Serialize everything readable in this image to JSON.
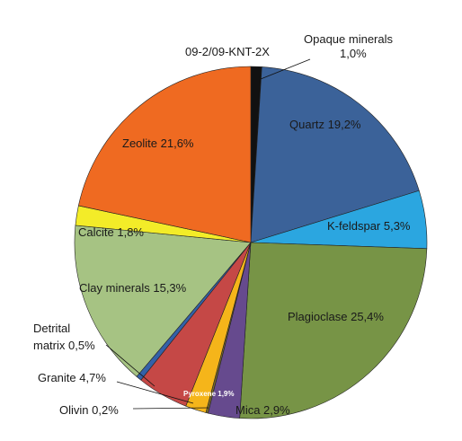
{
  "chart_data": {
    "type": "pie",
    "title": "",
    "slices": [
      {
        "label": "Opaque minerals",
        "value_text": "1,0%",
        "value": 1.0,
        "color": "#111111"
      },
      {
        "label": "Quartz",
        "value_text": "19,2%",
        "value": 19.2,
        "color": "#3b6299"
      },
      {
        "label": "K-feldspar",
        "value_text": "5,3%",
        "value": 5.3,
        "color": "#2ba6e0"
      },
      {
        "label": "Plagioclase",
        "value_text": "25,4%",
        "value": 25.4,
        "color": "#779446"
      },
      {
        "label": "Mica",
        "value_text": "2,9%",
        "value": 2.9,
        "color": "#664a8e"
      },
      {
        "label": "Olivin",
        "value_text": "0,2%",
        "value": 0.2,
        "color": "#7a6a2a"
      },
      {
        "label": "Pyroxene",
        "value_text": "1,9%",
        "value": 1.9,
        "color": "#f5b51a"
      },
      {
        "label": "Granite",
        "value_text": "4,7%",
        "value": 4.7,
        "color": "#c54846"
      },
      {
        "label": "Detrital matrix",
        "value_text": "0,5%",
        "value": 0.5,
        "color": "#3461a8"
      },
      {
        "label": "Clay minerals",
        "value_text": "15,3%",
        "value": 15.3,
        "color": "#a6c383"
      },
      {
        "label": "Calcite",
        "value_text": "1,8%",
        "value": 1.8,
        "color": "#f3ec28"
      },
      {
        "label": "Zeolite",
        "value_text": "21,6%",
        "value": 21.6,
        "color": "#ef6a21"
      }
    ],
    "annotation": "09-2/09-KNT-2X"
  }
}
